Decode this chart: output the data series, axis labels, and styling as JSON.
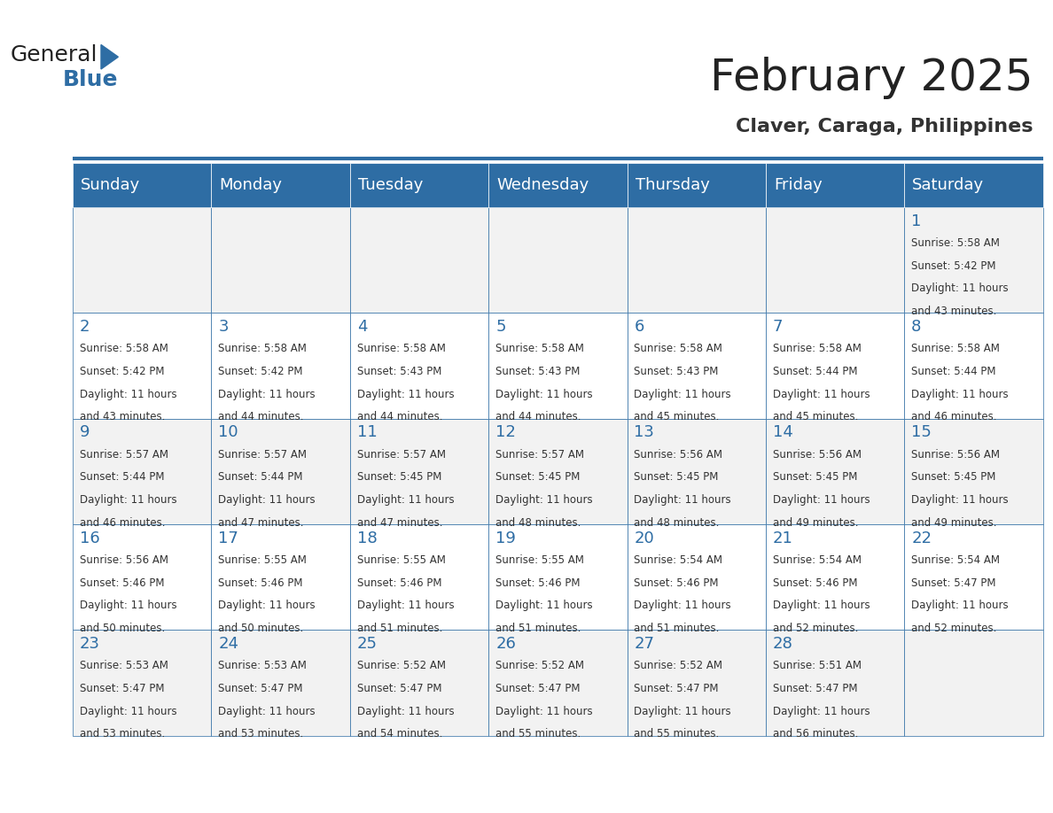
{
  "title": "February 2025",
  "subtitle": "Claver, Caraga, Philippines",
  "days_of_week": [
    "Sunday",
    "Monday",
    "Tuesday",
    "Wednesday",
    "Thursday",
    "Friday",
    "Saturday"
  ],
  "header_bg": "#2E6DA4",
  "header_text": "#FFFFFF",
  "cell_bg": "#F2F2F2",
  "cell_bg_alt": "#FFFFFF",
  "border_color": "#2E6DA4",
  "day_num_color": "#2E6DA4",
  "cell_text_color": "#333333",
  "title_color": "#222222",
  "subtitle_color": "#333333",
  "logo_general_color": "#222222",
  "logo_blue_color": "#2E6DA4",
  "weeks": [
    [
      {
        "day": 0,
        "date": "",
        "sunrise": "",
        "sunset": "",
        "daylight": ""
      },
      {
        "day": 1,
        "date": "",
        "sunrise": "",
        "sunset": "",
        "daylight": ""
      },
      {
        "day": 2,
        "date": "",
        "sunrise": "",
        "sunset": "",
        "daylight": ""
      },
      {
        "day": 3,
        "date": "",
        "sunrise": "",
        "sunset": "",
        "daylight": ""
      },
      {
        "day": 4,
        "date": "",
        "sunrise": "",
        "sunset": "",
        "daylight": ""
      },
      {
        "day": 5,
        "date": "",
        "sunrise": "",
        "sunset": "",
        "daylight": ""
      },
      {
        "day": 6,
        "date": "1",
        "sunrise": "5:58 AM",
        "sunset": "5:42 PM",
        "daylight": "11 hours and 43 minutes."
      }
    ],
    [
      {
        "day": 0,
        "date": "2",
        "sunrise": "5:58 AM",
        "sunset": "5:42 PM",
        "daylight": "11 hours and 43 minutes."
      },
      {
        "day": 1,
        "date": "3",
        "sunrise": "5:58 AM",
        "sunset": "5:42 PM",
        "daylight": "11 hours and 44 minutes."
      },
      {
        "day": 2,
        "date": "4",
        "sunrise": "5:58 AM",
        "sunset": "5:43 PM",
        "daylight": "11 hours and 44 minutes."
      },
      {
        "day": 3,
        "date": "5",
        "sunrise": "5:58 AM",
        "sunset": "5:43 PM",
        "daylight": "11 hours and 44 minutes."
      },
      {
        "day": 4,
        "date": "6",
        "sunrise": "5:58 AM",
        "sunset": "5:43 PM",
        "daylight": "11 hours and 45 minutes."
      },
      {
        "day": 5,
        "date": "7",
        "sunrise": "5:58 AM",
        "sunset": "5:44 PM",
        "daylight": "11 hours and 45 minutes."
      },
      {
        "day": 6,
        "date": "8",
        "sunrise": "5:58 AM",
        "sunset": "5:44 PM",
        "daylight": "11 hours and 46 minutes."
      }
    ],
    [
      {
        "day": 0,
        "date": "9",
        "sunrise": "5:57 AM",
        "sunset": "5:44 PM",
        "daylight": "11 hours and 46 minutes."
      },
      {
        "day": 1,
        "date": "10",
        "sunrise": "5:57 AM",
        "sunset": "5:44 PM",
        "daylight": "11 hours and 47 minutes."
      },
      {
        "day": 2,
        "date": "11",
        "sunrise": "5:57 AM",
        "sunset": "5:45 PM",
        "daylight": "11 hours and 47 minutes."
      },
      {
        "day": 3,
        "date": "12",
        "sunrise": "5:57 AM",
        "sunset": "5:45 PM",
        "daylight": "11 hours and 48 minutes."
      },
      {
        "day": 4,
        "date": "13",
        "sunrise": "5:56 AM",
        "sunset": "5:45 PM",
        "daylight": "11 hours and 48 minutes."
      },
      {
        "day": 5,
        "date": "14",
        "sunrise": "5:56 AM",
        "sunset": "5:45 PM",
        "daylight": "11 hours and 49 minutes."
      },
      {
        "day": 6,
        "date": "15",
        "sunrise": "5:56 AM",
        "sunset": "5:45 PM",
        "daylight": "11 hours and 49 minutes."
      }
    ],
    [
      {
        "day": 0,
        "date": "16",
        "sunrise": "5:56 AM",
        "sunset": "5:46 PM",
        "daylight": "11 hours and 50 minutes."
      },
      {
        "day": 1,
        "date": "17",
        "sunrise": "5:55 AM",
        "sunset": "5:46 PM",
        "daylight": "11 hours and 50 minutes."
      },
      {
        "day": 2,
        "date": "18",
        "sunrise": "5:55 AM",
        "sunset": "5:46 PM",
        "daylight": "11 hours and 51 minutes."
      },
      {
        "day": 3,
        "date": "19",
        "sunrise": "5:55 AM",
        "sunset": "5:46 PM",
        "daylight": "11 hours and 51 minutes."
      },
      {
        "day": 4,
        "date": "20",
        "sunrise": "5:54 AM",
        "sunset": "5:46 PM",
        "daylight": "11 hours and 51 minutes."
      },
      {
        "day": 5,
        "date": "21",
        "sunrise": "5:54 AM",
        "sunset": "5:46 PM",
        "daylight": "11 hours and 52 minutes."
      },
      {
        "day": 6,
        "date": "22",
        "sunrise": "5:54 AM",
        "sunset": "5:47 PM",
        "daylight": "11 hours and 52 minutes."
      }
    ],
    [
      {
        "day": 0,
        "date": "23",
        "sunrise": "5:53 AM",
        "sunset": "5:47 PM",
        "daylight": "11 hours and 53 minutes."
      },
      {
        "day": 1,
        "date": "24",
        "sunrise": "5:53 AM",
        "sunset": "5:47 PM",
        "daylight": "11 hours and 53 minutes."
      },
      {
        "day": 2,
        "date": "25",
        "sunrise": "5:52 AM",
        "sunset": "5:47 PM",
        "daylight": "11 hours and 54 minutes."
      },
      {
        "day": 3,
        "date": "26",
        "sunrise": "5:52 AM",
        "sunset": "5:47 PM",
        "daylight": "11 hours and 55 minutes."
      },
      {
        "day": 4,
        "date": "27",
        "sunrise": "5:52 AM",
        "sunset": "5:47 PM",
        "daylight": "11 hours and 55 minutes."
      },
      {
        "day": 5,
        "date": "28",
        "sunrise": "5:51 AM",
        "sunset": "5:47 PM",
        "daylight": "11 hours and 56 minutes."
      },
      {
        "day": 6,
        "date": "",
        "sunrise": "",
        "sunset": "",
        "daylight": ""
      }
    ]
  ]
}
